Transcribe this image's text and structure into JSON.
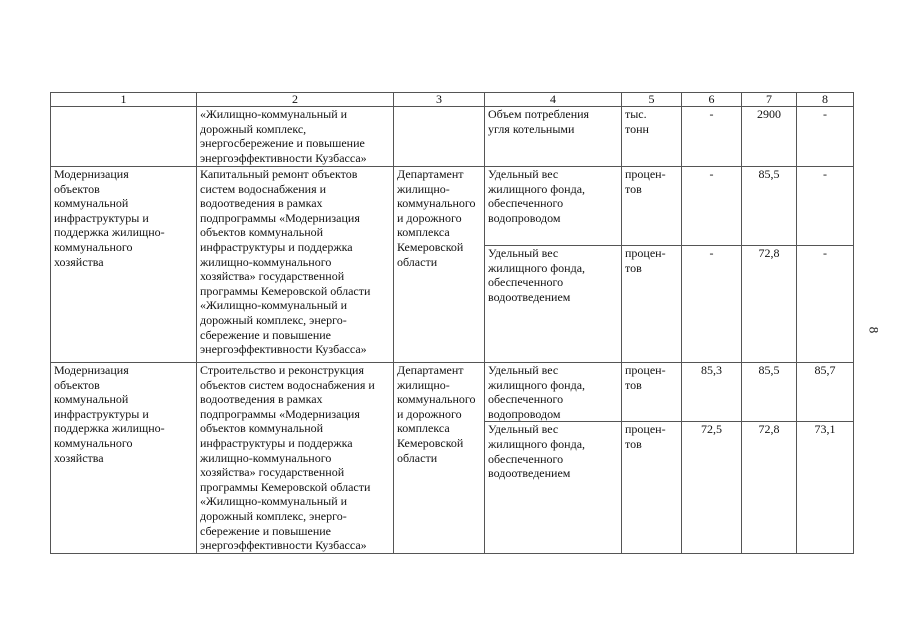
{
  "page_number": "8",
  "header": [
    "1",
    "2",
    "3",
    "4",
    "5",
    "6",
    "7",
    "8"
  ],
  "row1": {
    "col2": "«Жилищно-коммунальный и\nдорожный комплекс,\nэнергосбережение и повышение\nэнергоэффективности Кузбасса»",
    "indicator": "Объем потребления\nугля котельными",
    "unit": "тыс.\nтонн",
    "v6": "-",
    "v7": "2900",
    "v8": "-"
  },
  "row2": {
    "col1": "Модернизация\nобъектов\nкоммунальной\nинфраструктуры и\nподдержка жилищно-\nкоммунального\nхозяйства",
    "col2": "Капитальный ремонт объектов\nсистем водоснабжения и\nводоотведения в рамках\nподпрограммы «Модернизация\nобъектов коммунальной\nинфраструктуры и поддержка\nжилищно-коммунального\nхозяйства» государственной\nпрограммы Кемеровской области\n«Жилищно-коммунальный и\nдорожный комплекс, энерго-\nсбережение и повышение\nэнергоэффективности Кузбасса»",
    "col3": "Департамент\nжилищно-\nкоммунального\nи дорожного\nкомплекса\nКемеровской\nобласти",
    "indicators": [
      {
        "name": "Удельный вес\nжилищного фонда,\nобеспеченного\nводопроводом",
        "unit": "процен-\nтов",
        "v6": "-",
        "v7": "85,5",
        "v8": "-"
      },
      {
        "name": "Удельный вес\nжилищного фонда,\nобеспеченного\nводоотведением",
        "unit": "процен-\nтов",
        "v6": "-",
        "v7": "72,8",
        "v8": "-"
      }
    ]
  },
  "row3": {
    "col1": "Модернизация\nобъектов\nкоммунальной\nинфраструктуры и\nподдержка жилищно-\nкоммунального\nхозяйства",
    "col2": "Строительство и реконструкция\nобъектов систем водоснабжения и\nводоотведения в рамках\nподпрограммы «Модернизация\nобъектов коммунальной\nинфраструктуры и поддержка\nжилищно-коммунального\nхозяйства» государственной\nпрограммы Кемеровской области\n«Жилищно-коммунальный и\nдорожный комплекс, энерго-\nсбережение и повышение\nэнергоэффективности Кузбасса»",
    "col3": "Департамент\nжилищно-\nкоммунального\nи дорожного\nкомплекса\nКемеровской\nобласти",
    "indicators": [
      {
        "name": "Удельный вес\nжилищного фонда,\nобеспеченного\nводопроводом",
        "unit": "процен-\nтов",
        "v6": "85,3",
        "v7": "85,5",
        "v8": "85,7"
      },
      {
        "name": "Удельный вес\nжилищного фонда,\nобеспеченного\nводоотведением",
        "unit": "процен-\nтов",
        "v6": "72,5",
        "v7": "72,8",
        "v8": "73,1"
      }
    ]
  }
}
